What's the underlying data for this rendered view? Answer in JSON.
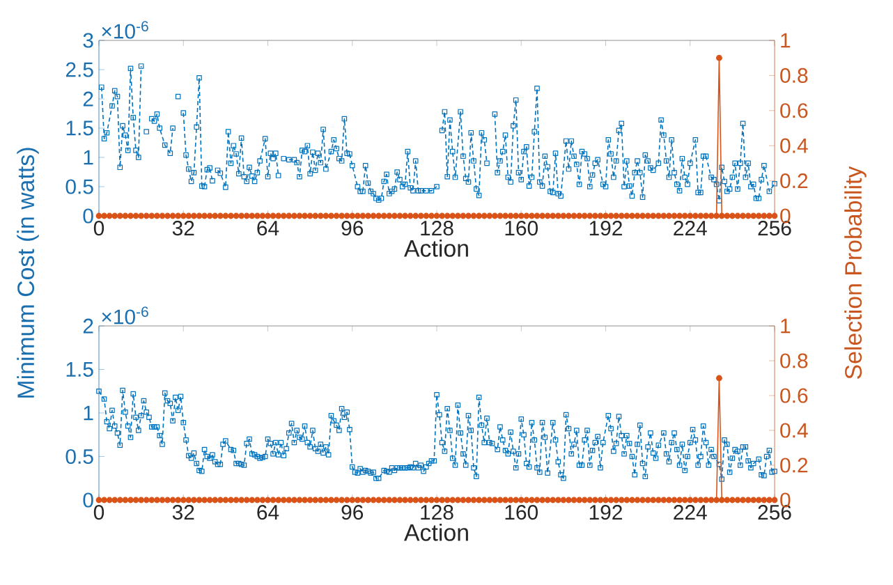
{
  "chart_data": [
    {
      "type": "line",
      "xlabel": "Action",
      "ylabel": "Minimum Cost (in watts)",
      "y2label": "Selection Probability",
      "annotations": [
        "×10$^{-6}$"
      ],
      "xlim": [
        0,
        256
      ],
      "xticks": [
        0,
        32,
        64,
        96,
        128,
        160,
        192,
        224,
        256
      ],
      "ylim": [
        0,
        3
      ],
      "yticks": [
        0,
        0.5,
        1,
        1.5,
        2,
        2.5,
        3
      ],
      "y2lim": [
        0,
        1
      ],
      "y2ticks": [
        0,
        0.2,
        0.4,
        0.6,
        0.8,
        1
      ],
      "series": [
        {
          "color": "#0072bd",
          "marker": "square",
          "line_style": "dashed",
          "x": [
            1,
            2,
            3,
            5,
            6,
            7,
            8,
            9,
            10,
            11,
            12,
            13,
            14,
            15,
            16,
            17,
            18,
            19,
            20,
            21,
            22,
            23,
            25,
            27,
            28,
            29,
            30,
            31,
            32,
            33,
            34,
            35,
            36,
            37,
            38,
            39,
            40,
            41,
            42,
            43,
            44,
            45,
            46,
            48,
            49,
            50,
            51,
            52,
            53,
            54,
            55,
            56,
            57,
            58,
            59,
            60,
            61,
            63,
            64,
            65,
            66,
            67,
            68,
            69,
            70,
            71,
            72,
            74,
            75,
            76,
            77,
            78,
            79,
            80,
            81,
            82,
            83,
            84,
            85,
            86,
            88,
            89,
            90,
            91,
            92,
            93,
            94,
            95,
            96,
            98,
            99,
            100,
            101,
            102,
            103,
            104,
            105,
            106,
            107,
            108,
            109,
            110,
            111,
            112,
            113,
            114,
            115,
            116,
            117,
            118,
            119,
            120,
            121,
            122,
            124,
            126,
            128,
            129,
            130,
            131,
            132,
            133,
            134,
            135,
            137,
            138,
            139,
            140,
            141,
            142,
            143,
            144,
            145,
            146,
            147,
            148,
            150,
            151,
            152,
            153,
            154,
            155,
            156,
            157,
            158,
            159,
            160,
            161,
            162,
            163,
            164,
            165,
            166,
            167,
            168,
            169,
            170,
            171,
            172,
            173,
            174,
            175,
            177,
            178,
            179,
            180,
            181,
            182,
            183,
            184,
            185,
            186,
            187,
            188,
            189,
            191,
            192,
            193,
            194,
            195,
            196,
            197,
            198,
            199,
            200,
            201,
            202,
            203,
            204,
            205,
            206,
            207,
            208,
            209,
            210,
            212,
            213,
            214,
            215,
            216,
            217,
            218,
            219,
            220,
            221,
            222,
            223,
            224,
            226,
            227,
            228,
            229,
            230,
            232,
            233,
            234,
            235,
            236,
            237,
            238,
            239,
            240,
            241,
            242,
            243,
            244,
            245,
            246,
            247,
            248,
            249,
            250,
            251,
            252,
            254,
            256
          ],
          "values": [
            2.2,
            1.32,
            1.42,
            1.88,
            2.14,
            2.04,
            0.83,
            1.54,
            1.38,
            1.12,
            2.52,
            1.68,
            1.12,
            1.0,
            2.56,
            null,
            1.44,
            null,
            1.66,
            1.62,
            1.74,
            1.5,
            1.21,
            1.07,
            1.5,
            null,
            2.04,
            null,
            1.76,
            1.04,
            0.8,
            0.59,
            0.74,
            1.52,
            2.36,
            0.51,
            0.5,
            0.79,
            0.82,
            0.6,
            null,
            0.78,
            0.73,
            0.49,
            1.44,
            0.9,
            1.2,
            1.06,
            0.72,
            1.33,
            0.67,
            0.59,
            0.83,
            0.68,
            0.59,
            0.74,
            0.94,
            1.32,
            0.67,
            1.07,
            0.98,
            1.07,
            0.69,
            null,
            0.98,
            null,
            0.96,
            0.96,
            0.91,
            0.67,
            1.12,
            1.1,
            1.2,
            0.72,
            1.09,
            0.78,
            1.07,
            0.91,
            1.48,
            0.8,
            1.1,
            1.3,
            1.15,
            0.98,
            0.94,
            1.66,
            1.07,
            1.06,
            0.86,
            0.5,
            0.42,
            0.42,
            0.86,
            0.56,
            0.42,
            0.38,
            0.3,
            0.27,
            0.3,
            0.59,
            0.71,
            0.38,
            0.42,
            0.46,
            0.75,
            0.62,
            0.5,
            0.54,
            1.1,
            0.48,
            0.43,
            0.94,
            0.43,
            0.43,
            0.43,
            0.43,
            0.5,
            null,
            1.46,
            1.78,
            0.67,
            1.64,
            1.1,
            0.66,
            1.78,
            1.02,
            0.64,
            0.58,
            1.42,
            0.94,
            0.46,
            0.35,
            1.42,
            1.3,
            0.9,
            null,
            1.74,
            0.74,
            0.94,
            1.1,
            1.38,
            0.66,
            0.58,
            1.54,
            1.98,
            0.74,
            0.62,
            1.1,
            1.18,
            0.51,
            0.66,
            1.44,
            2.18,
            0.58,
            0.51,
            1.02,
            0.84,
            0.42,
            0.4,
            1.07,
            0.38,
            0.34,
            1.28,
            0.8,
            1.28,
            1.02,
            0.88,
            0.54,
            1.1,
            1.06,
            0.98,
            0.5,
            0.7,
            0.9,
            0.96,
            0.54,
            0.5,
            1.3,
            1.06,
            0.66,
            0.94,
            1.46,
            1.58,
            0.5,
            0.94,
            0.51,
            0.34,
            0.74,
            0.94,
            0.74,
            0.32,
            1.04,
            0.94,
            0.82,
            0.78,
            0.9,
            1.64,
            1.38,
            0.94,
            0.66,
            1.3,
            0.74,
            0.54,
            0.43,
            0.98,
            0.66,
            0.54,
            0.9,
            1.3,
            0.4,
            0.4,
            1.02,
            1.02,
            0.66,
            0.62,
            0.54,
            0.26,
            0.83,
            0.59,
            0.42,
            0.46,
            0.66,
            0.9,
            0.46,
            0.9,
            1.58,
            0.66,
            0.9,
            0.5,
            0.54,
            0.3,
            0.3,
            0.62,
            0.86,
            0.42,
            0.55
          ]
        },
        {
          "color": "#d95319",
          "marker": "circle",
          "line_style": "solid",
          "axis": "y2",
          "x": [
            0,
            2,
            4,
            6,
            8,
            10,
            12,
            14,
            16,
            18,
            20,
            22,
            24,
            26,
            28,
            30,
            32,
            34,
            36,
            38,
            40,
            42,
            44,
            46,
            48,
            50,
            52,
            54,
            56,
            58,
            60,
            62,
            64,
            66,
            68,
            70,
            72,
            74,
            76,
            78,
            80,
            82,
            84,
            86,
            88,
            90,
            92,
            94,
            96,
            98,
            100,
            102,
            104,
            106,
            108,
            110,
            112,
            114,
            116,
            118,
            120,
            122,
            124,
            126,
            128,
            130,
            132,
            134,
            136,
            138,
            140,
            142,
            144,
            146,
            148,
            150,
            152,
            154,
            156,
            158,
            160,
            162,
            164,
            166,
            168,
            170,
            172,
            174,
            176,
            178,
            180,
            182,
            184,
            186,
            188,
            190,
            192,
            194,
            196,
            198,
            200,
            202,
            204,
            206,
            208,
            210,
            212,
            214,
            216,
            218,
            220,
            222,
            224,
            226,
            228,
            230,
            232,
            234,
            235,
            236,
            238,
            240,
            242,
            244,
            246,
            248,
            250,
            252,
            254,
            256
          ],
          "values": [
            0,
            0,
            0,
            0,
            0,
            0,
            0,
            0,
            0,
            0,
            0,
            0,
            0,
            0,
            0,
            0,
            0,
            0,
            0,
            0,
            0,
            0,
            0,
            0,
            0,
            0,
            0,
            0,
            0,
            0,
            0,
            0,
            0,
            0,
            0,
            0,
            0,
            0,
            0,
            0,
            0,
            0,
            0,
            0,
            0,
            0,
            0,
            0,
            0,
            0,
            0,
            0,
            0,
            0,
            0,
            0,
            0,
            0,
            0,
            0,
            0,
            0,
            0,
            0,
            0,
            0,
            0,
            0,
            0,
            0,
            0,
            0,
            0,
            0,
            0,
            0,
            0,
            0,
            0,
            0,
            0,
            0,
            0,
            0,
            0,
            0,
            0,
            0,
            0,
            0,
            0,
            0,
            0,
            0,
            0,
            0,
            0,
            0,
            0,
            0,
            0,
            0,
            0,
            0,
            0,
            0,
            0,
            0,
            0,
            0,
            0,
            0,
            0,
            0,
            0,
            0,
            0,
            0,
            0.9,
            0,
            0,
            0,
            0,
            0,
            0,
            0,
            0,
            0,
            0,
            0
          ]
        }
      ]
    },
    {
      "type": "line",
      "xlabel": "Action",
      "annotations": [
        "×10$^{-6}$"
      ],
      "xlim": [
        0,
        256
      ],
      "xticks": [
        0,
        32,
        64,
        96,
        128,
        160,
        192,
        224,
        256
      ],
      "ylim": [
        0,
        2
      ],
      "yticks": [
        0,
        0.5,
        1,
        1.5,
        2
      ],
      "y2lim": [
        0,
        1
      ],
      "y2ticks": [
        0,
        0.2,
        0.4,
        0.6,
        0.8,
        1
      ],
      "series": [
        {
          "color": "#0072bd",
          "marker": "square",
          "line_style": "dashed",
          "x": [
            0,
            2,
            3,
            4,
            5,
            6,
            7,
            8,
            9,
            10,
            11,
            12,
            13,
            14,
            15,
            16,
            17,
            18,
            19,
            20,
            21,
            22,
            23,
            24,
            25,
            26,
            27,
            28,
            29,
            30,
            31,
            32,
            33,
            34,
            35,
            36,
            37,
            38,
            39,
            40,
            41,
            42,
            43,
            44,
            45,
            46,
            47,
            48,
            50,
            51,
            52,
            53,
            54,
            55,
            56,
            57,
            58,
            59,
            60,
            61,
            62,
            63,
            64,
            65,
            66,
            67,
            68,
            69,
            70,
            71,
            72,
            73,
            74,
            75,
            76,
            77,
            78,
            79,
            80,
            81,
            82,
            83,
            84,
            85,
            86,
            87,
            88,
            89,
            90,
            91,
            92,
            93,
            94,
            95,
            96,
            97,
            98,
            99,
            100,
            101,
            102,
            103,
            104,
            105,
            106,
            108,
            109,
            110,
            111,
            112,
            113,
            114,
            115,
            116,
            117,
            118,
            119,
            120,
            121,
            122,
            123,
            124,
            125,
            126,
            127,
            128,
            129,
            130,
            131,
            132,
            133,
            134,
            135,
            136,
            137,
            138,
            139,
            140,
            141,
            142,
            143,
            144,
            145,
            146,
            147,
            148,
            149,
            151,
            152,
            153,
            154,
            155,
            156,
            157,
            158,
            159,
            160,
            161,
            162,
            163,
            164,
            165,
            166,
            167,
            168,
            169,
            170,
            172,
            173,
            174,
            175,
            176,
            177,
            178,
            179,
            180,
            181,
            182,
            183,
            184,
            185,
            186,
            187,
            188,
            189,
            190,
            191,
            193,
            194,
            195,
            196,
            197,
            198,
            199,
            200,
            201,
            202,
            203,
            204,
            205,
            206,
            207,
            208,
            209,
            210,
            211,
            212,
            214,
            215,
            216,
            217,
            218,
            219,
            220,
            221,
            222,
            223,
            224,
            225,
            226,
            227,
            228,
            229,
            230,
            231,
            232,
            233,
            235,
            236,
            237,
            238,
            239,
            240,
            241,
            242,
            243,
            244,
            245,
            246,
            247,
            248,
            250,
            251,
            252,
            253,
            254,
            255,
            256
          ],
          "values": [
            1.25,
            1.16,
            0.9,
            0.82,
            1.03,
            0.85,
            0.77,
            0.63,
            1.26,
            1.01,
            0.85,
            0.72,
            1.22,
            0.95,
            0.8,
            0.97,
            1.14,
            1.01,
            0.95,
            0.84,
            0.84,
            0.84,
            0.74,
            0.64,
            1.23,
            1.14,
            1.11,
            0.91,
            1.18,
            1.03,
            1.19,
            0.89,
            0.69,
            0.51,
            0.48,
            0.54,
            0.42,
            0.34,
            0.33,
            0.58,
            0.5,
            0.48,
            0.52,
            0.44,
            0.41,
            0.41,
            0.64,
            0.68,
            0.58,
            0.57,
            0.42,
            0.42,
            0.41,
            0.4,
            0.65,
            0.7,
            0.53,
            0.52,
            0.5,
            0.48,
            0.49,
            0.5,
            0.7,
            0.65,
            0.53,
            0.66,
            0.52,
            0.66,
            0.51,
            0.59,
            0.77,
            0.88,
            0.66,
            0.8,
            0.72,
            0.7,
            0.85,
            0.66,
            0.61,
            0.8,
            0.59,
            0.56,
            0.64,
            0.54,
            0.61,
            0.52,
            0.97,
            0.91,
            0.86,
            0.8,
            1.05,
            0.95,
            1.01,
            0.81,
            0.38,
            0.32,
            0.31,
            0.36,
            0.32,
            0.34,
            0.33,
            0.31,
            0.32,
            0.25,
            0.25,
            0.34,
            0.33,
            0.32,
            0.37,
            0.34,
            0.37,
            0.37,
            0.37,
            0.37,
            0.37,
            0.38,
            0.37,
            0.42,
            0.37,
            0.4,
            0.33,
            0.38,
            0.42,
            0.45,
            0.45,
            1.21,
            0.98,
            0.66,
            0.56,
            1.05,
            0.8,
            0.48,
            0.4,
            1.09,
            0.77,
            0.53,
            0.4,
            0.97,
            0.8,
            0.37,
            0.27,
            1.18,
            0.86,
            0.66,
            0.94,
            0.66,
            0.65,
            0.58,
            0.84,
            0.69,
            0.57,
            0.53,
            0.78,
            0.56,
            0.37,
            0.53,
            0.93,
            0.75,
            0.42,
            0.38,
            0.89,
            0.69,
            0.37,
            0.32,
            0.89,
            0.72,
            0.31,
            0.89,
            0.69,
            0.44,
            0.29,
            0.25,
            0.98,
            0.82,
            0.53,
            0.64,
            0.8,
            0.4,
            0.4,
            0.69,
            0.8,
            0.4,
            0.57,
            0.66,
            0.73,
            0.37,
            0.66,
            0.97,
            0.82,
            0.56,
            0.65,
            0.96,
            0.74,
            0.53,
            0.74,
            0.65,
            0.5,
            0.29,
            0.64,
            0.86,
            0.42,
            0.27,
            0.61,
            0.77,
            0.54,
            0.48,
            0.63,
            0.77,
            0.53,
            0.44,
            0.66,
            0.77,
            0.58,
            0.4,
            0.64,
            0.34,
            0.5,
            0.66,
            0.81,
            0.69,
            0.4,
            0.5,
            0.85,
            0.66,
            0.4,
            0.58,
            0.5,
            0.41,
            0.24,
            0.69,
            0.64,
            0.32,
            0.48,
            0.58,
            0.56,
            0.4,
            0.61,
            0.61,
            0.45,
            0.37,
            0.42,
            0.47,
            0.29,
            0.28,
            0.5,
            0.57,
            0.32,
            0.33
          ]
        },
        {
          "color": "#d95319",
          "marker": "circle",
          "line_style": "solid",
          "axis": "y2",
          "x": [
            0,
            2,
            4,
            6,
            8,
            10,
            12,
            14,
            16,
            18,
            20,
            22,
            24,
            26,
            28,
            30,
            32,
            34,
            36,
            38,
            40,
            42,
            44,
            46,
            48,
            50,
            52,
            54,
            56,
            58,
            60,
            62,
            64,
            66,
            68,
            70,
            72,
            74,
            76,
            78,
            80,
            82,
            84,
            86,
            88,
            90,
            92,
            94,
            96,
            98,
            100,
            102,
            104,
            106,
            108,
            110,
            112,
            114,
            116,
            118,
            120,
            122,
            124,
            126,
            128,
            130,
            132,
            134,
            136,
            138,
            140,
            142,
            144,
            146,
            148,
            150,
            152,
            154,
            156,
            158,
            160,
            162,
            164,
            166,
            168,
            170,
            172,
            174,
            176,
            178,
            180,
            182,
            184,
            186,
            188,
            190,
            192,
            194,
            196,
            198,
            200,
            202,
            204,
            206,
            208,
            210,
            212,
            214,
            216,
            218,
            220,
            222,
            224,
            226,
            228,
            230,
            232,
            234,
            235,
            236,
            238,
            240,
            242,
            244,
            246,
            248,
            250,
            252,
            254,
            256
          ],
          "values": [
            0,
            0,
            0,
            0,
            0,
            0,
            0,
            0,
            0,
            0,
            0,
            0,
            0,
            0,
            0,
            0,
            0,
            0,
            0,
            0,
            0,
            0,
            0,
            0,
            0,
            0,
            0,
            0,
            0,
            0,
            0,
            0,
            0,
            0,
            0,
            0,
            0,
            0,
            0,
            0,
            0,
            0,
            0,
            0,
            0,
            0,
            0,
            0,
            0,
            0,
            0,
            0,
            0,
            0,
            0,
            0,
            0,
            0,
            0,
            0,
            0,
            0,
            0,
            0,
            0,
            0,
            0,
            0,
            0,
            0,
            0,
            0,
            0,
            0,
            0,
            0,
            0,
            0,
            0,
            0,
            0,
            0,
            0,
            0,
            0,
            0,
            0,
            0,
            0,
            0,
            0,
            0,
            0,
            0,
            0,
            0,
            0,
            0,
            0,
            0,
            0,
            0,
            0,
            0,
            0,
            0,
            0,
            0,
            0,
            0,
            0,
            0,
            0,
            0,
            0,
            0,
            0,
            0,
            0.7,
            0,
            0,
            0,
            0,
            0,
            0,
            0,
            0,
            0,
            0,
            0
          ]
        }
      ]
    }
  ]
}
